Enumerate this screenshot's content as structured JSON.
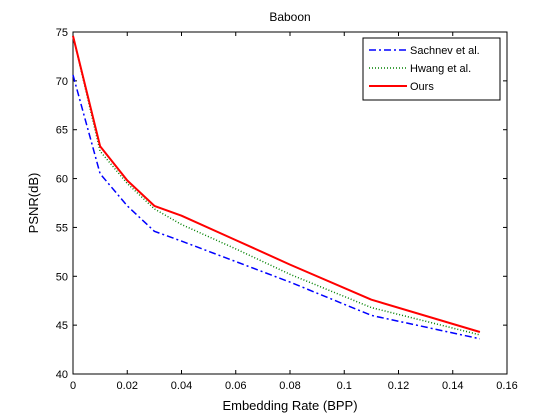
{
  "chart_data": {
    "type": "line",
    "title": "Baboon",
    "xlabel": "Embedding Rate (BPP)",
    "ylabel": "PSNR(dB)",
    "xlim": [
      0,
      0.16
    ],
    "ylim": [
      40,
      75
    ],
    "xticks": [
      "0",
      "0.02",
      "0.04",
      "0.06",
      "0.08",
      "0.1",
      "0.12",
      "0.14",
      "0.16"
    ],
    "yticks": [
      "40",
      "45",
      "50",
      "55",
      "60",
      "65",
      "70",
      "75"
    ],
    "grid": false,
    "legend_position": "top-right",
    "series": [
      {
        "name": "Sachnev et al.",
        "color": "#0000ff",
        "style": "dashdot",
        "points": [
          [
            0,
            70.6
          ],
          [
            0.01,
            60.5
          ],
          [
            0.02,
            57.2
          ],
          [
            0.03,
            54.6
          ],
          [
            0.04,
            53.6
          ],
          [
            0.06,
            51.5
          ],
          [
            0.08,
            49.4
          ],
          [
            0.11,
            46.0
          ],
          [
            0.15,
            43.6
          ]
        ]
      },
      {
        "name": "Hwang et al.",
        "color": "#008000",
        "style": "dotted",
        "points": [
          [
            0,
            74.6
          ],
          [
            0.01,
            62.8
          ],
          [
            0.02,
            59.5
          ],
          [
            0.03,
            56.9
          ],
          [
            0.04,
            55.3
          ],
          [
            0.06,
            52.8
          ],
          [
            0.08,
            50.2
          ],
          [
            0.11,
            46.8
          ],
          [
            0.15,
            44.0
          ]
        ]
      },
      {
        "name": "Ours",
        "color": "#ff0000",
        "style": "solid",
        "points": [
          [
            0,
            74.6
          ],
          [
            0.01,
            63.3
          ],
          [
            0.02,
            59.8
          ],
          [
            0.03,
            57.2
          ],
          [
            0.04,
            56.2
          ],
          [
            0.06,
            53.7
          ],
          [
            0.08,
            51.2
          ],
          [
            0.11,
            47.6
          ],
          [
            0.15,
            44.3
          ]
        ]
      }
    ]
  }
}
